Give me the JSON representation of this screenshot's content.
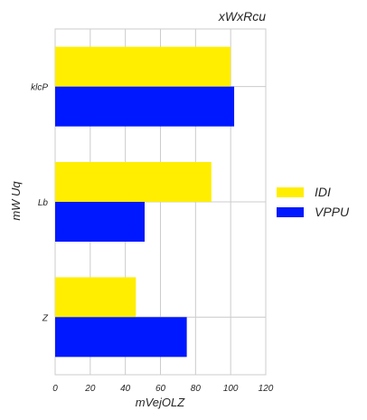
{
  "chart_data": {
    "type": "bar",
    "orientation": "horizontal",
    "title": "xWxRcu",
    "xlabel": "mVejOLZ",
    "ylabel": "mW Uq",
    "categories": [
      "klcP",
      "Lb",
      "Z"
    ],
    "series": [
      {
        "name": "IDI",
        "color": "#ffee00",
        "values": [
          100,
          89,
          46
        ]
      },
      {
        "name": "VPPU",
        "color": "#0018ff",
        "values": [
          102,
          51,
          75
        ]
      }
    ],
    "xlim": [
      0,
      120
    ],
    "xticks": [
      "0",
      "20",
      "40",
      "60",
      "80",
      "100",
      "120"
    ],
    "grid": true,
    "legend_position": "right"
  }
}
